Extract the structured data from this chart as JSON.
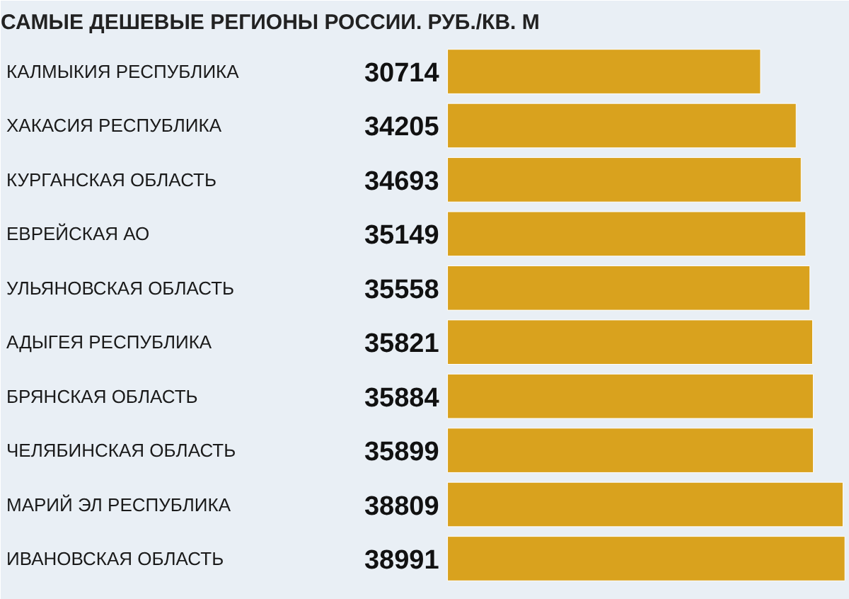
{
  "chart_data": {
    "type": "bar",
    "orientation": "horizontal",
    "title": "САМЫЕ ДЕШЕВЫЕ РЕГИОНЫ РОССИИ. РУБ./КВ. М",
    "categories": [
      "КАЛМЫКИЯ РЕСПУБЛИКА",
      "ХАКАСИЯ РЕСПУБЛИКА",
      "КУРГАНСКАЯ ОБЛАСТЬ",
      "ЕВРЕЙСКАЯ АО",
      "УЛЬЯНОВСКАЯ ОБЛАСТЬ",
      "АДЫГЕЯ РЕСПУБЛИКА",
      "БРЯНСКАЯ ОБЛАСТЬ",
      "ЧЕЛЯБИНСКАЯ ОБЛАСТЬ",
      "МАРИЙ ЭЛ РЕСПУБЛИКА",
      "ИВАНОВСКАЯ ОБЛАСТЬ"
    ],
    "values": [
      30714,
      34205,
      34693,
      35149,
      35558,
      35821,
      35884,
      35899,
      38809,
      38991
    ],
    "color": "#d9a21e",
    "data_labels": true
  }
}
